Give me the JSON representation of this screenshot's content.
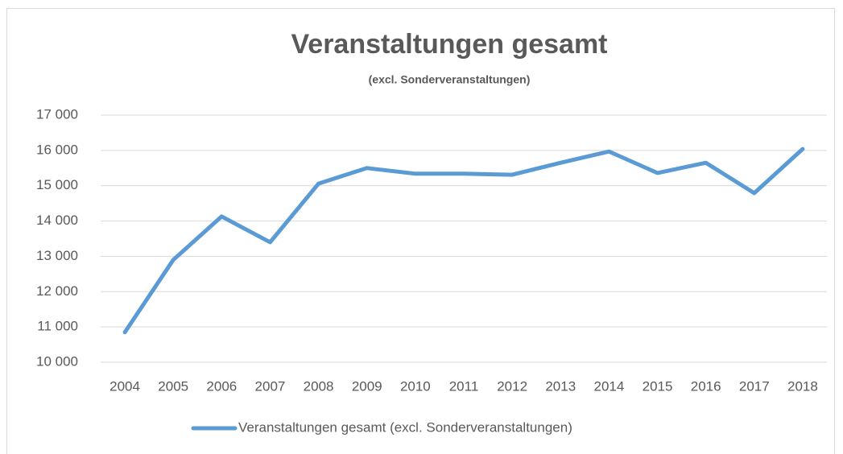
{
  "chart_data": {
    "type": "line",
    "title": "Veranstaltungen gesamt",
    "subtitle": "(excl. Sonderveranstaltungen)",
    "categories": [
      "2004",
      "2005",
      "2006",
      "2007",
      "2008",
      "2009",
      "2010",
      "2011",
      "2012",
      "2013",
      "2014",
      "2015",
      "2016",
      "2017",
      "2018"
    ],
    "series": [
      {
        "name": "Veranstaltungen gesamt (excl. Sonderveranstaltungen)",
        "color": "#5b9bd5",
        "values": [
          10850,
          12900,
          14130,
          13400,
          15060,
          15500,
          15340,
          15340,
          15310,
          15650,
          15970,
          15360,
          15650,
          14790,
          16040
        ]
      }
    ],
    "ylim": [
      10000,
      17000
    ],
    "yticks": [
      {
        "value": 10000,
        "label": "10 000"
      },
      {
        "value": 11000,
        "label": "11 000"
      },
      {
        "value": 12000,
        "label": "12 000"
      },
      {
        "value": 13000,
        "label": "13 000"
      },
      {
        "value": 14000,
        "label": "14 000"
      },
      {
        "value": 15000,
        "label": "15 000"
      },
      {
        "value": 16000,
        "label": "16 000"
      },
      {
        "value": 17000,
        "label": "17 000"
      }
    ],
    "grid": true,
    "legend": "bottom"
  }
}
